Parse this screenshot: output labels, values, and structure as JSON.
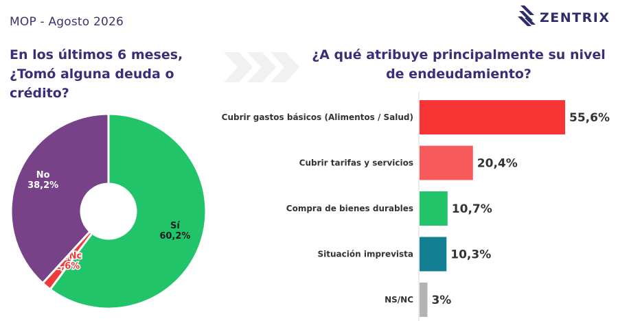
{
  "header": {
    "subtitle": "MOP - Agosto 2026",
    "logo_text": "ZENTRIX"
  },
  "left_question": {
    "title": "En los últimos 6 meses, ¿Tomó alguna deuda o crédito?"
  },
  "right_question": {
    "title": "¿A qué atribuye principalmente su nivel de endeudamiento?"
  },
  "chart_data": [
    {
      "type": "pie",
      "title": "En los últimos 6 meses, ¿Tomó alguna deuda o crédito?",
      "slices": [
        {
          "label": "Sí",
          "value": 60.2,
          "value_label": "60,2%",
          "color": "#22c46a"
        },
        {
          "label": "Ns/Nc",
          "value": 1.6,
          "value_label": "1,6%",
          "color": "#f03a3a"
        },
        {
          "label": "No",
          "value": 38.2,
          "value_label": "38,2%",
          "color": "#784289"
        }
      ],
      "donut": true
    },
    {
      "type": "bar",
      "orientation": "horizontal",
      "title": "¿A qué atribuye principalmente su nivel de endeudamiento?",
      "categories": [
        "Cubrir gastos básicos (Alimentos / Salud)",
        "Cubrir tarifas y servicios",
        "Compra de bienes durables",
        "Situación imprevista",
        "NS/NC"
      ],
      "values": [
        55.6,
        20.4,
        10.7,
        10.3,
        3
      ],
      "value_labels": [
        "55,6%",
        "20,4%",
        "10,7%",
        "10,3%",
        "3%"
      ],
      "colors": [
        "#f73535",
        "#f75a5a",
        "#22c46a",
        "#127f93",
        "#b3b3b3"
      ]
    }
  ]
}
